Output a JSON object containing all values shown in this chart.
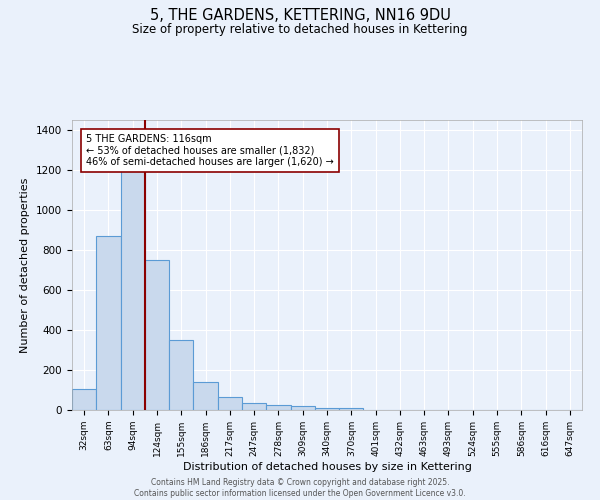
{
  "title": "5, THE GARDENS, KETTERING, NN16 9DU",
  "subtitle": "Size of property relative to detached houses in Kettering",
  "xlabel": "Distribution of detached houses by size in Kettering",
  "ylabel": "Number of detached properties",
  "bar_labels": [
    "32sqm",
    "63sqm",
    "94sqm",
    "124sqm",
    "155sqm",
    "186sqm",
    "217sqm",
    "247sqm",
    "278sqm",
    "309sqm",
    "340sqm",
    "370sqm",
    "401sqm",
    "432sqm",
    "463sqm",
    "493sqm",
    "524sqm",
    "555sqm",
    "586sqm",
    "616sqm",
    "647sqm"
  ],
  "bar_values": [
    105,
    870,
    1240,
    750,
    350,
    140,
    65,
    35,
    25,
    18,
    10,
    8,
    0,
    0,
    0,
    0,
    0,
    0,
    0,
    0,
    0
  ],
  "bar_color": "#c9d9ed",
  "bar_edge_color": "#5b9bd5",
  "background_color": "#eaf1fb",
  "grid_color": "#ffffff",
  "marker_color": "#8b0000",
  "annotation_text": "5 THE GARDENS: 116sqm\n← 53% of detached houses are smaller (1,832)\n46% of semi-detached houses are larger (1,620) →",
  "annotation_box_color": "#ffffff",
  "annotation_box_edge": "#8b0000",
  "ylim": [
    0,
    1450
  ],
  "yticks": [
    0,
    200,
    400,
    600,
    800,
    1000,
    1200,
    1400
  ],
  "footer_line1": "Contains HM Land Registry data © Crown copyright and database right 2025.",
  "footer_line2": "Contains public sector information licensed under the Open Government Licence v3.0."
}
